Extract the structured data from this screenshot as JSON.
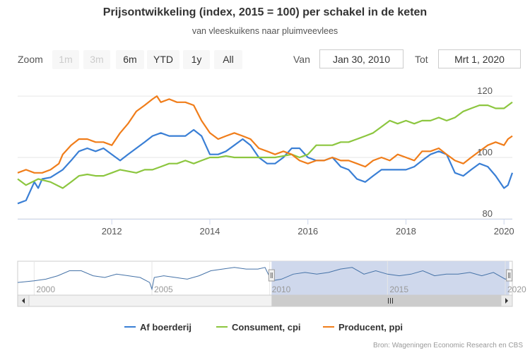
{
  "title": "Prijsontwikkeling (index, 2015 = 100) per schakel in de keten",
  "subtitle": "van vleeskuikens naar pluimveevlees",
  "zoom": {
    "label": "Zoom",
    "buttons": [
      {
        "label": "1m",
        "enabled": false
      },
      {
        "label": "3m",
        "enabled": false
      },
      {
        "label": "6m",
        "enabled": true
      },
      {
        "label": "YTD",
        "enabled": true
      },
      {
        "label": "1y",
        "enabled": true
      },
      {
        "label": "All",
        "enabled": true
      }
    ]
  },
  "range": {
    "from_label": "Van",
    "from_value": "Jan 30, 2010",
    "to_label": "Tot",
    "to_value": "Mrt 1, 2020"
  },
  "legend": [
    "Af boerderij",
    "Consument, cpi",
    "Producent, ppi"
  ],
  "credits": "Bron: Wageningen Economic Research en CBS",
  "colors": {
    "farm": "#3a7fd5",
    "cpi": "#8cc63f",
    "ppi": "#f07d1a",
    "navigator_fill": "#ccd6eb",
    "navigator_line": "#4572a7"
  },
  "chart_data": {
    "type": "line",
    "x_unit": "year",
    "xlim": [
      2010.08,
      2020.17
    ],
    "ylim": [
      80,
      126
    ],
    "x_ticks": [
      "2012",
      "2014",
      "2016",
      "2018",
      "2020"
    ],
    "y_ticks": [
      "80",
      "100",
      "120"
    ],
    "grid": true,
    "legend_position": "bottom",
    "series": [
      {
        "name": "Af boerderij",
        "points": [
          [
            2010.08,
            85
          ],
          [
            2010.25,
            86
          ],
          [
            2010.42,
            92
          ],
          [
            2010.5,
            90
          ],
          [
            2010.58,
            93
          ],
          [
            2010.75,
            93.5
          ],
          [
            2011.0,
            96
          ],
          [
            2011.17,
            99
          ],
          [
            2011.33,
            102
          ],
          [
            2011.5,
            103
          ],
          [
            2011.67,
            102
          ],
          [
            2011.83,
            103
          ],
          [
            2012.0,
            101
          ],
          [
            2012.17,
            99
          ],
          [
            2012.33,
            101
          ],
          [
            2012.5,
            103
          ],
          [
            2012.67,
            105
          ],
          [
            2012.83,
            107
          ],
          [
            2013.0,
            108
          ],
          [
            2013.17,
            107
          ],
          [
            2013.33,
            107
          ],
          [
            2013.5,
            107
          ],
          [
            2013.67,
            109
          ],
          [
            2013.83,
            107
          ],
          [
            2014.0,
            101
          ],
          [
            2014.17,
            101
          ],
          [
            2014.33,
            102
          ],
          [
            2014.5,
            104
          ],
          [
            2014.67,
            106
          ],
          [
            2014.83,
            104
          ],
          [
            2015.0,
            100
          ],
          [
            2015.17,
            98
          ],
          [
            2015.33,
            98
          ],
          [
            2015.5,
            100
          ],
          [
            2015.67,
            103
          ],
          [
            2015.83,
            103
          ],
          [
            2016.0,
            100
          ],
          [
            2016.17,
            99
          ],
          [
            2016.33,
            99
          ],
          [
            2016.5,
            100
          ],
          [
            2016.67,
            97
          ],
          [
            2016.83,
            96
          ],
          [
            2017.0,
            93
          ],
          [
            2017.17,
            92
          ],
          [
            2017.33,
            94
          ],
          [
            2017.5,
            96
          ],
          [
            2017.67,
            96
          ],
          [
            2017.83,
            96
          ],
          [
            2018.0,
            96
          ],
          [
            2018.17,
            97
          ],
          [
            2018.33,
            99
          ],
          [
            2018.5,
            101
          ],
          [
            2018.67,
            102
          ],
          [
            2018.83,
            101
          ],
          [
            2019.0,
            95
          ],
          [
            2019.17,
            94
          ],
          [
            2019.33,
            96
          ],
          [
            2019.5,
            98
          ],
          [
            2019.67,
            97
          ],
          [
            2019.83,
            94
          ],
          [
            2020.0,
            90
          ],
          [
            2020.08,
            91
          ],
          [
            2020.17,
            95
          ]
        ]
      },
      {
        "name": "Consument, cpi",
        "points": [
          [
            2010.08,
            93
          ],
          [
            2010.25,
            91
          ],
          [
            2010.5,
            93
          ],
          [
            2010.75,
            92
          ],
          [
            2011.0,
            90
          ],
          [
            2011.17,
            92
          ],
          [
            2011.33,
            94
          ],
          [
            2011.5,
            94.5
          ],
          [
            2011.67,
            94
          ],
          [
            2011.83,
            94
          ],
          [
            2012.0,
            95
          ],
          [
            2012.17,
            96
          ],
          [
            2012.5,
            95
          ],
          [
            2012.67,
            96
          ],
          [
            2012.83,
            96
          ],
          [
            2013.0,
            97
          ],
          [
            2013.17,
            98
          ],
          [
            2013.33,
            98
          ],
          [
            2013.5,
            99
          ],
          [
            2013.67,
            98
          ],
          [
            2013.83,
            99
          ],
          [
            2014.0,
            100
          ],
          [
            2014.17,
            100
          ],
          [
            2014.33,
            100.5
          ],
          [
            2014.5,
            100
          ],
          [
            2014.67,
            100
          ],
          [
            2014.83,
            100
          ],
          [
            2015.0,
            100
          ],
          [
            2015.17,
            100
          ],
          [
            2015.33,
            100
          ],
          [
            2015.5,
            100.5
          ],
          [
            2015.67,
            101
          ],
          [
            2015.83,
            100
          ],
          [
            2016.0,
            101
          ],
          [
            2016.17,
            104
          ],
          [
            2016.33,
            104
          ],
          [
            2016.5,
            104
          ],
          [
            2016.67,
            105
          ],
          [
            2016.83,
            105
          ],
          [
            2017.0,
            106
          ],
          [
            2017.17,
            107
          ],
          [
            2017.33,
            108
          ],
          [
            2017.5,
            110
          ],
          [
            2017.67,
            112
          ],
          [
            2017.83,
            111
          ],
          [
            2018.0,
            112
          ],
          [
            2018.17,
            111
          ],
          [
            2018.33,
            112
          ],
          [
            2018.5,
            112
          ],
          [
            2018.67,
            113
          ],
          [
            2018.83,
            112
          ],
          [
            2019.0,
            113
          ],
          [
            2019.17,
            115
          ],
          [
            2019.33,
            116
          ],
          [
            2019.5,
            117
          ],
          [
            2019.67,
            117
          ],
          [
            2019.83,
            116
          ],
          [
            2020.0,
            116
          ],
          [
            2020.17,
            118
          ]
        ]
      },
      {
        "name": "Producent, ppi",
        "points": [
          [
            2010.08,
            95
          ],
          [
            2010.25,
            96
          ],
          [
            2010.42,
            95
          ],
          [
            2010.58,
            95
          ],
          [
            2010.75,
            96
          ],
          [
            2010.92,
            98
          ],
          [
            2011.0,
            101
          ],
          [
            2011.17,
            104
          ],
          [
            2011.33,
            106
          ],
          [
            2011.5,
            106
          ],
          [
            2011.67,
            105
          ],
          [
            2011.83,
            105
          ],
          [
            2012.0,
            104
          ],
          [
            2012.17,
            108
          ],
          [
            2012.33,
            111
          ],
          [
            2012.5,
            115
          ],
          [
            2012.67,
            117
          ],
          [
            2012.83,
            119
          ],
          [
            2012.92,
            120
          ],
          [
            2013.0,
            118
          ],
          [
            2013.17,
            119
          ],
          [
            2013.33,
            118
          ],
          [
            2013.5,
            118
          ],
          [
            2013.67,
            117
          ],
          [
            2013.83,
            112
          ],
          [
            2014.0,
            108
          ],
          [
            2014.17,
            106
          ],
          [
            2014.33,
            107
          ],
          [
            2014.5,
            108
          ],
          [
            2014.67,
            107
          ],
          [
            2014.83,
            106
          ],
          [
            2015.0,
            103
          ],
          [
            2015.17,
            102
          ],
          [
            2015.33,
            101
          ],
          [
            2015.5,
            102
          ],
          [
            2015.67,
            101
          ],
          [
            2015.83,
            99
          ],
          [
            2016.0,
            98
          ],
          [
            2016.17,
            99
          ],
          [
            2016.33,
            99
          ],
          [
            2016.5,
            100
          ],
          [
            2016.67,
            99
          ],
          [
            2016.83,
            99
          ],
          [
            2017.0,
            98
          ],
          [
            2017.17,
            97
          ],
          [
            2017.33,
            99
          ],
          [
            2017.5,
            100
          ],
          [
            2017.67,
            99
          ],
          [
            2017.83,
            101
          ],
          [
            2018.0,
            100
          ],
          [
            2018.17,
            99
          ],
          [
            2018.33,
            102
          ],
          [
            2018.5,
            102
          ],
          [
            2018.67,
            103
          ],
          [
            2018.83,
            101
          ],
          [
            2019.0,
            99
          ],
          [
            2019.17,
            98
          ],
          [
            2019.33,
            100
          ],
          [
            2019.5,
            102
          ],
          [
            2019.67,
            104
          ],
          [
            2019.83,
            105
          ],
          [
            2020.0,
            104
          ],
          [
            2020.08,
            106
          ],
          [
            2020.17,
            107
          ]
        ]
      }
    ],
    "navigator": {
      "x_ticks": [
        "2000",
        "2005",
        "2010",
        "2015",
        "2020"
      ],
      "xlim": [
        1999.3,
        2020.3
      ],
      "selected": [
        2010.08,
        2020.17
      ],
      "points": [
        [
          1999.3,
          99
        ],
        [
          2000,
          100
        ],
        [
          2000.5,
          101
        ],
        [
          2001,
          103
        ],
        [
          2001.5,
          106
        ],
        [
          2002,
          106
        ],
        [
          2002.5,
          103
        ],
        [
          2003,
          102
        ],
        [
          2003.5,
          104
        ],
        [
          2004,
          103
        ],
        [
          2004.5,
          102
        ],
        [
          2004.9,
          99
        ],
        [
          2005.0,
          95
        ],
        [
          2005.1,
          102
        ],
        [
          2005.5,
          103
        ],
        [
          2006,
          102
        ],
        [
          2006.5,
          101
        ],
        [
          2007,
          103
        ],
        [
          2007.5,
          106
        ],
        [
          2008,
          107
        ],
        [
          2008.5,
          108
        ],
        [
          2009,
          107
        ],
        [
          2009.5,
          107
        ],
        [
          2009.8,
          108
        ],
        [
          2010.08,
          100
        ],
        [
          2010.5,
          101
        ],
        [
          2011,
          104
        ],
        [
          2011.5,
          105
        ],
        [
          2012,
          104
        ],
        [
          2012.5,
          105
        ],
        [
          2013,
          107
        ],
        [
          2013.5,
          108
        ],
        [
          2014,
          104
        ],
        [
          2014.5,
          106
        ],
        [
          2015,
          104
        ],
        [
          2015.5,
          103
        ],
        [
          2016,
          104
        ],
        [
          2016.5,
          106
        ],
        [
          2017,
          103
        ],
        [
          2017.5,
          104
        ],
        [
          2018,
          104
        ],
        [
          2018.5,
          105
        ],
        [
          2019,
          103
        ],
        [
          2019.5,
          105
        ],
        [
          2020,
          101
        ],
        [
          2020.17,
          102
        ]
      ]
    }
  }
}
